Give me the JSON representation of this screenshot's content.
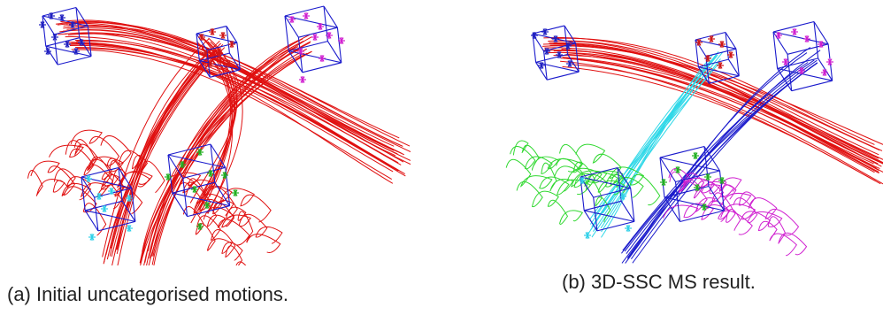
{
  "captions": {
    "a": "(a) Initial uncategorised motions.",
    "b": "(b) 3D-SSC MS result."
  },
  "colors": {
    "trajectory_uncategorised": "#e01010",
    "cube_edges": "#1a1acc",
    "marker_blue": "#2020c0",
    "marker_red": "#d01818",
    "marker_magenta": "#d020d0",
    "marker_cyan": "#30d0e8",
    "marker_green": "#20b020",
    "cluster_red": "#e01010",
    "cluster_cyan": "#30d8e8",
    "cluster_blue": "#1a1acc",
    "cluster_green": "#30d830",
    "cluster_magenta": "#d020d0"
  }
}
